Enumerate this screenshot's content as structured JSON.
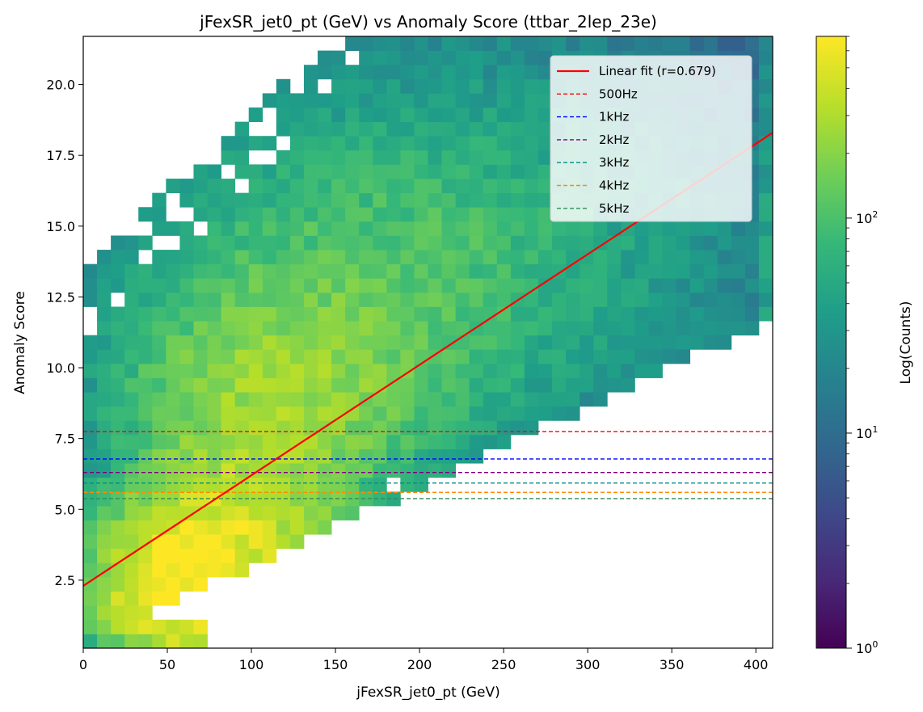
{
  "chart_data": {
    "type": "heatmap",
    "title": "jFexSR_jet0_pt (GeV) vs Anomaly Score (ttbar_2lep_23e)",
    "xlabel": "jFexSR_jet0_pt (GeV)",
    "ylabel": "Anomaly Score",
    "colorbar_label": "Log(Counts)",
    "colorscale": "viridis",
    "color_scale_type": "log",
    "color_range": [
      1,
      700
    ],
    "color_ticks": [
      {
        "value": 1,
        "base": "10",
        "exp": "0"
      },
      {
        "value": 10,
        "base": "10",
        "exp": "1"
      },
      {
        "value": 100,
        "base": "10",
        "exp": "2"
      }
    ],
    "xlim": [
      0,
      410
    ],
    "ylim": [
      0.1,
      21.7
    ],
    "x_ticks": [
      0,
      50,
      100,
      150,
      200,
      250,
      300,
      350,
      400
    ],
    "y_ticks": [
      2.5,
      5.0,
      7.5,
      10.0,
      12.5,
      15.0,
      17.5,
      20.0
    ],
    "bins": {
      "x_count": 50,
      "y_count": 43
    },
    "fit_line": {
      "label": "Linear fit (r=0.679)",
      "color": "#ff0000",
      "x": [
        0,
        410
      ],
      "y": [
        2.3,
        18.3
      ]
    },
    "threshold_lines": [
      {
        "label": "500Hz",
        "y": 7.75,
        "color": "#ff0000"
      },
      {
        "label": "1kHz",
        "y": 6.78,
        "color": "#0000ff"
      },
      {
        "label": "2kHz",
        "y": 6.3,
        "color": "#800080"
      },
      {
        "label": "3kHz",
        "y": 5.93,
        "color": "#008b8b"
      },
      {
        "label": "4kHz",
        "y": 5.6,
        "color": "#ff8c00"
      },
      {
        "label": "5kHz",
        "y": 5.38,
        "color": "#2e8b57"
      }
    ],
    "legend_position": "top-right",
    "grid": false
  }
}
